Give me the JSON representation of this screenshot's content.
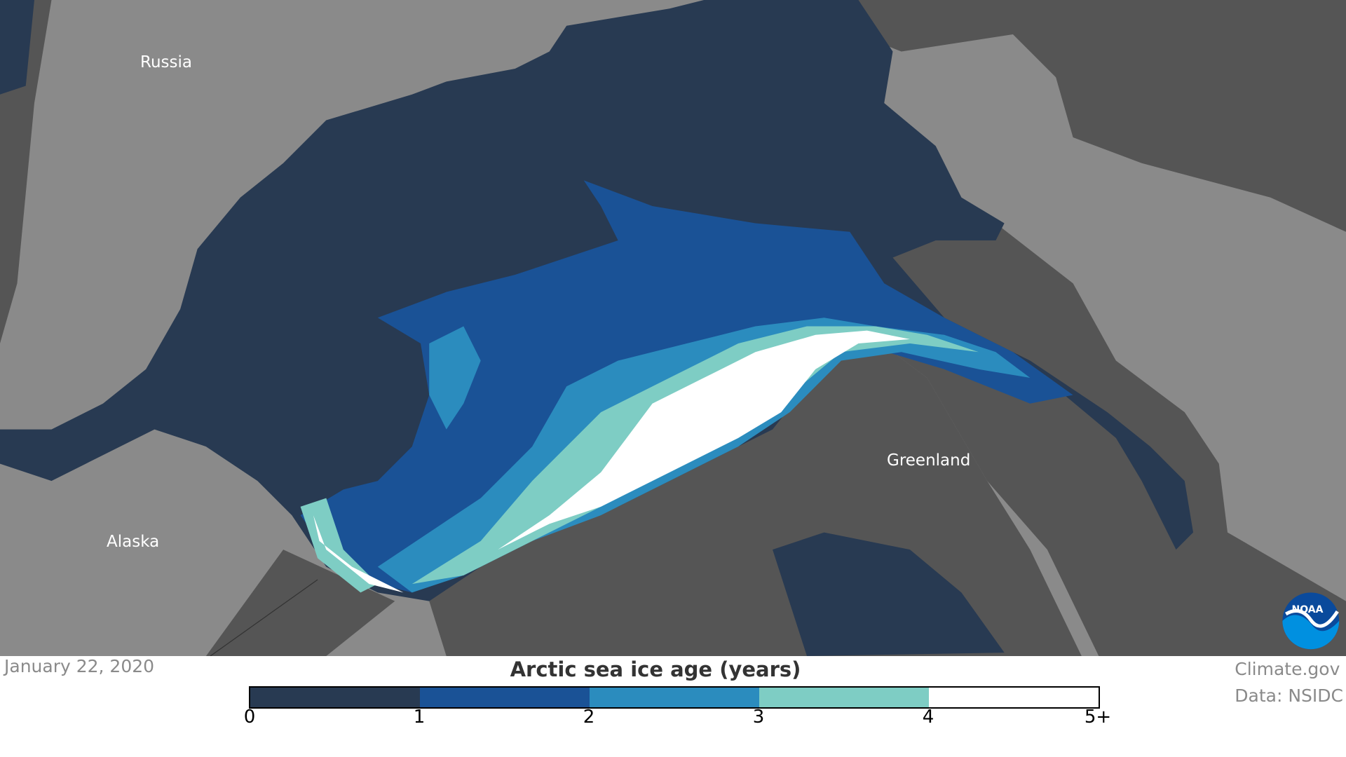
{
  "map": {
    "labels": {
      "russia": "Russia",
      "alaska": "Alaska",
      "greenland": "Greenland"
    },
    "colors": {
      "land": "#8a8a8a",
      "open_ocean": "#555555"
    }
  },
  "date": "January 22, 2020",
  "legend": {
    "title": "Arctic sea ice age (years)",
    "bins": [
      {
        "range": "0-1",
        "color": "#283a52"
      },
      {
        "range": "1-2",
        "color": "#1a5296"
      },
      {
        "range": "2-3",
        "color": "#2b8cbe"
      },
      {
        "range": "3-4",
        "color": "#7ecdc4"
      },
      {
        "range": "4-5+",
        "color": "#ffffff"
      }
    ],
    "ticks": [
      "0",
      "1",
      "2",
      "3",
      "4",
      "5+"
    ]
  },
  "credit": {
    "site": "Climate.gov",
    "source": "Data: NSIDC"
  },
  "logo": {
    "text": "NOAA",
    "icon": "noaa-logo-icon"
  }
}
